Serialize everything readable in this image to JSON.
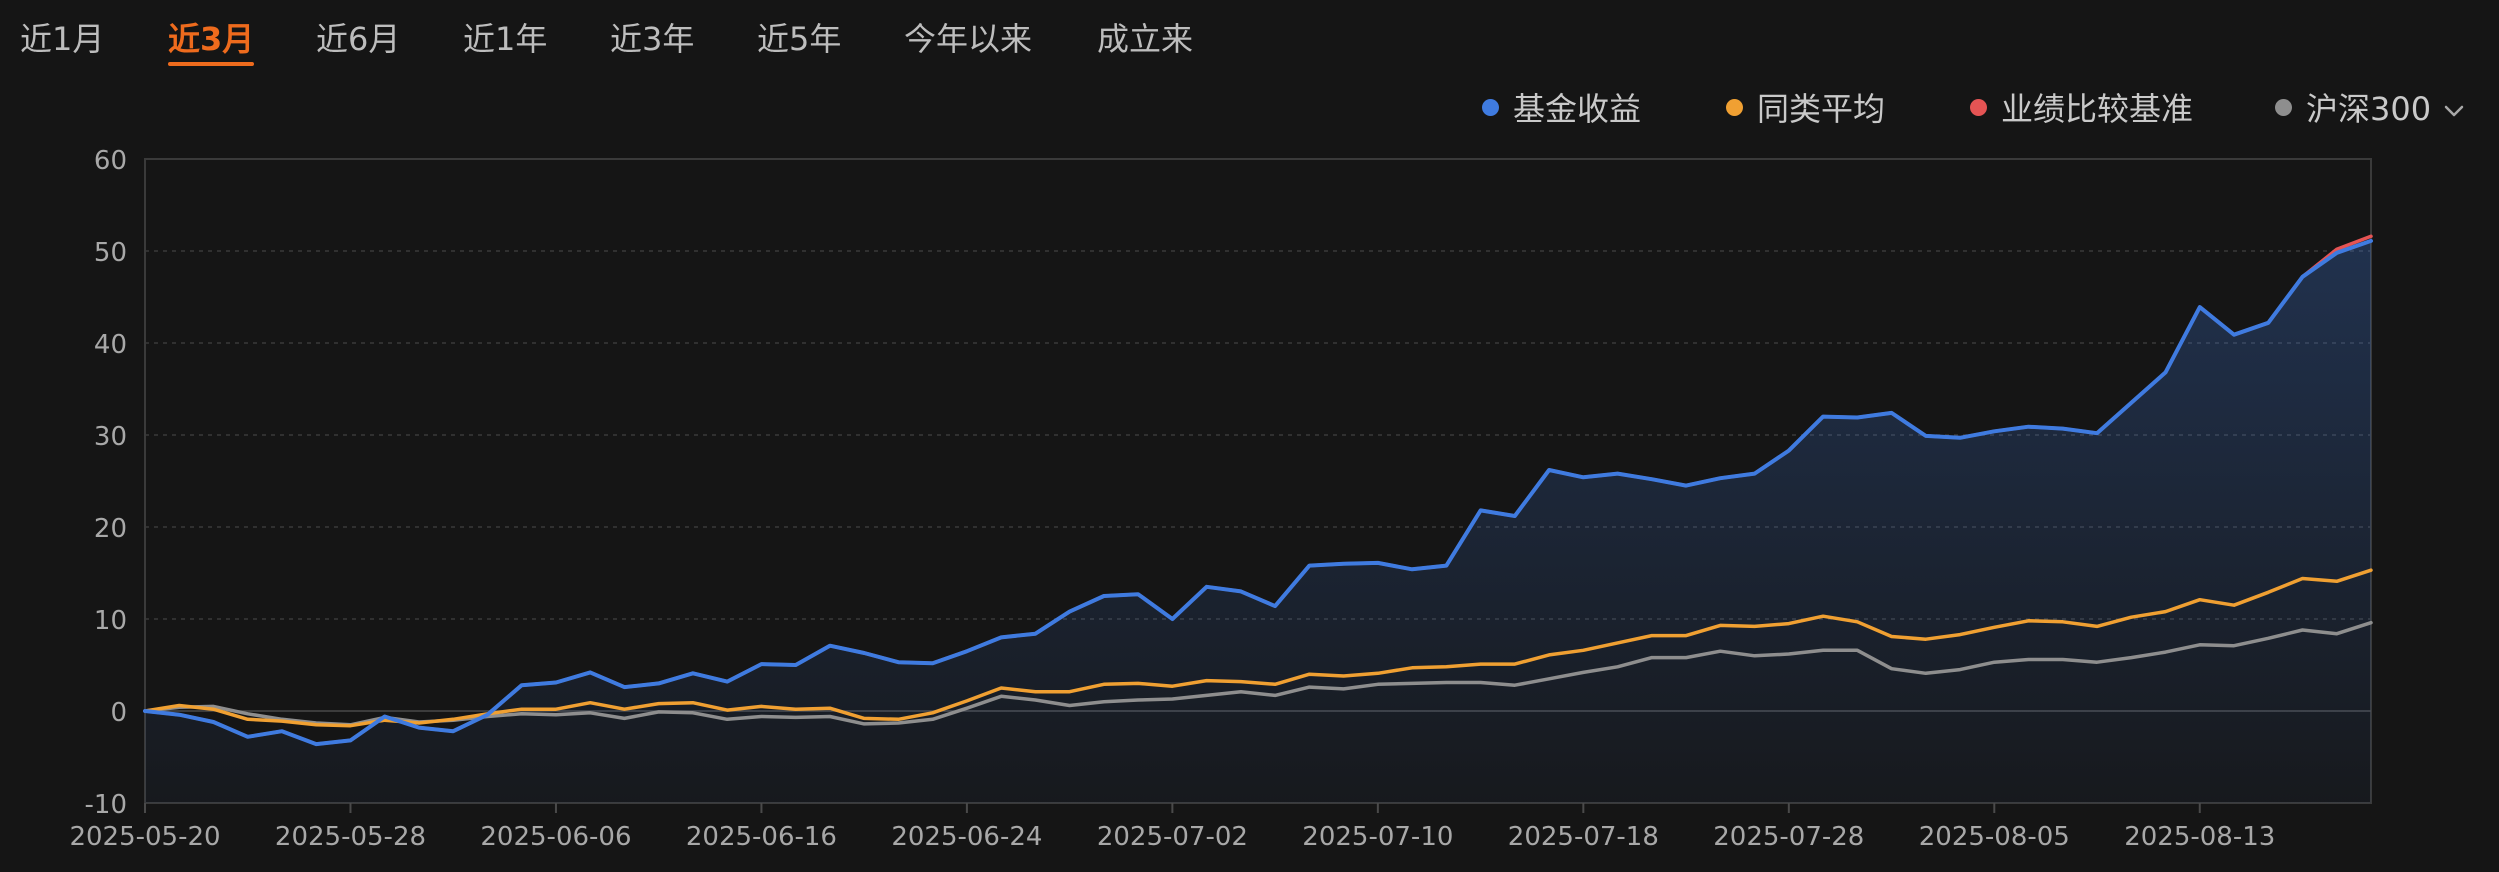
{
  "tabs": [
    {
      "label": "近1月",
      "active": false
    },
    {
      "label": "近3月",
      "active": true
    },
    {
      "label": "近6月",
      "active": false
    },
    {
      "label": "近1年",
      "active": false
    },
    {
      "label": "近3年",
      "active": false
    },
    {
      "label": "近5年",
      "active": false
    },
    {
      "label": "今年以来",
      "active": false
    },
    {
      "label": "成立来",
      "active": false
    }
  ],
  "legend": {
    "dropdown_icon": "chevron-down-icon"
  },
  "colors": {
    "accent": "#ee6b1d",
    "fund": "#3f7be0",
    "category_avg": "#f0a032",
    "benchmark": "#e55454",
    "csi300": "#8e8e8e",
    "grid": "#3a3a3a",
    "axis_text": "#a8a8a8"
  },
  "chart_data": {
    "type": "line",
    "title": "",
    "xlabel": "",
    "ylabel": "",
    "ylim": [
      -10,
      60
    ],
    "yticks": [
      -10,
      0,
      10,
      20,
      30,
      40,
      50,
      60
    ],
    "grid": true,
    "legend_position": "top-right",
    "x_tick_labels": [
      "2025-05-20",
      "2025-05-28",
      "2025-06-06",
      "2025-06-16",
      "2025-06-24",
      "2025-07-02",
      "2025-07-10",
      "2025-07-18",
      "2025-07-28",
      "2025-08-05",
      "2025-08-13"
    ],
    "x_tick_indices": [
      0,
      6,
      12,
      18,
      24,
      30,
      36,
      42,
      48,
      54,
      60
    ],
    "x_count": 66,
    "series": [
      {
        "name": "基金收益",
        "key": "fund",
        "filled": true,
        "values": [
          0,
          -0.4,
          -1.2,
          -2.8,
          -2.2,
          -3.6,
          -3.2,
          -0.6,
          -1.8,
          -2.2,
          -0.4,
          2.8,
          3.1,
          4.2,
          2.6,
          3.0,
          4.1,
          3.2,
          5.1,
          5.0,
          7.1,
          6.3,
          5.3,
          5.2,
          6.5,
          8.0,
          8.4,
          10.8,
          12.5,
          12.7,
          10.0,
          13.5,
          13.0,
          11.4,
          15.8,
          16.0,
          16.1,
          15.4,
          15.8,
          21.8,
          21.2,
          26.2,
          25.4,
          25.8,
          25.2,
          24.5,
          25.3,
          25.8,
          28.3,
          32.0,
          31.9,
          32.4,
          29.9,
          29.7,
          30.4,
          30.9,
          30.7,
          30.2,
          33.5,
          36.8,
          43.9,
          40.9,
          42.2,
          47.2,
          49.8,
          51.1
        ]
      },
      {
        "name": "同类平均",
        "key": "category_avg",
        "filled": false,
        "values": [
          0,
          0.6,
          0.2,
          -0.9,
          -1.1,
          -1.5,
          -1.6,
          -1.0,
          -1.3,
          -0.9,
          -0.3,
          0.2,
          0.2,
          0.9,
          0.2,
          0.8,
          0.9,
          0.1,
          0.5,
          0.2,
          0.3,
          -0.8,
          -0.9,
          -0.2,
          1.1,
          2.5,
          2.1,
          2.1,
          2.9,
          3.0,
          2.7,
          3.3,
          3.2,
          2.9,
          4.0,
          3.8,
          4.1,
          4.7,
          4.8,
          5.1,
          5.1,
          6.1,
          6.6,
          7.4,
          8.2,
          8.2,
          9.3,
          9.2,
          9.5,
          10.3,
          9.7,
          8.1,
          7.8,
          8.3,
          9.1,
          9.8,
          9.7,
          9.2,
          10.2,
          10.8,
          12.1,
          11.5,
          12.9,
          14.4,
          14.1,
          15.3
        ]
      },
      {
        "name": "业绩比较基准",
        "key": "benchmark",
        "filled": false,
        "values": [
          0,
          -0.4,
          -1.2,
          -2.8,
          -2.2,
          -3.6,
          -3.2,
          -0.6,
          -1.8,
          -2.2,
          -0.4,
          2.8,
          3.1,
          4.2,
          2.6,
          3.0,
          4.1,
          3.2,
          5.1,
          5.0,
          7.1,
          6.3,
          5.3,
          5.2,
          6.5,
          8.0,
          8.4,
          10.8,
          12.5,
          12.7,
          10.0,
          13.5,
          13.0,
          11.4,
          15.8,
          16.0,
          16.1,
          15.4,
          15.8,
          21.8,
          21.2,
          26.2,
          25.4,
          25.8,
          25.2,
          24.5,
          25.3,
          25.8,
          28.3,
          32.0,
          31.9,
          32.4,
          29.9,
          29.7,
          30.4,
          30.9,
          30.7,
          30.2,
          33.5,
          36.8,
          43.9,
          40.9,
          42.2,
          47.2,
          50.2,
          51.6
        ]
      },
      {
        "name": "沪深300",
        "key": "csi300",
        "filled": false,
        "values": [
          0,
          0.4,
          0.5,
          -0.3,
          -0.9,
          -1.3,
          -1.5,
          -0.7,
          -1.2,
          -1.0,
          -0.6,
          -0.3,
          -0.4,
          -0.2,
          -0.8,
          -0.1,
          -0.2,
          -0.9,
          -0.6,
          -0.7,
          -0.6,
          -1.4,
          -1.3,
          -0.9,
          0.3,
          1.6,
          1.2,
          0.6,
          1.0,
          1.2,
          1.3,
          1.7,
          2.1,
          1.7,
          2.6,
          2.4,
          2.9,
          3.0,
          3.1,
          3.1,
          2.8,
          3.5,
          4.2,
          4.8,
          5.8,
          5.8,
          6.5,
          6.0,
          6.2,
          6.6,
          6.6,
          4.6,
          4.1,
          4.5,
          5.3,
          5.6,
          5.6,
          5.3,
          5.8,
          6.4,
          7.2,
          7.1,
          7.9,
          8.8,
          8.4,
          9.6
        ]
      }
    ]
  }
}
